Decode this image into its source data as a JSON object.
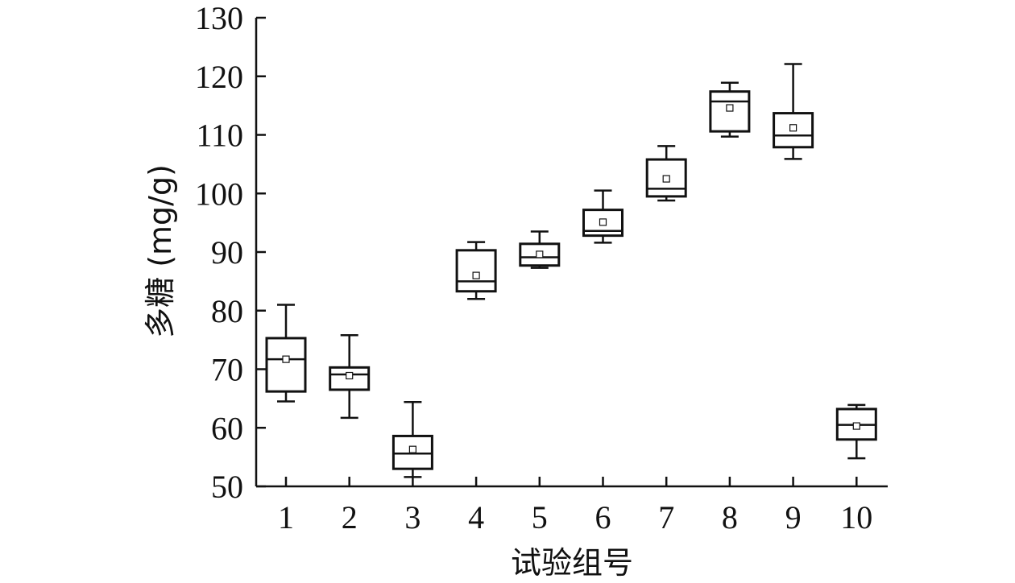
{
  "chart_data": {
    "type": "box",
    "title": "",
    "xlabel": "试验组号",
    "ylabel": "多糖 (mg/g)",
    "ylim": [
      50,
      130
    ],
    "yticks": [
      50,
      60,
      70,
      80,
      90,
      100,
      110,
      120,
      130
    ],
    "categories": [
      "1",
      "2",
      "3",
      "4",
      "5",
      "6",
      "7",
      "8",
      "9",
      "10"
    ],
    "boxes": [
      {
        "category": "1",
        "min": 64.5,
        "q1": 66.2,
        "median": 71.7,
        "q3": 75.3,
        "max": 81.0,
        "mean": 71.7
      },
      {
        "category": "2",
        "min": 61.7,
        "q1": 66.5,
        "median": 69.1,
        "q3": 70.3,
        "max": 75.8,
        "mean": 68.9
      },
      {
        "category": "3",
        "min": 51.6,
        "q1": 53.0,
        "median": 55.6,
        "q3": 58.6,
        "max": 64.4,
        "mean": 56.3
      },
      {
        "category": "4",
        "min": 82.0,
        "q1": 83.3,
        "median": 85.0,
        "q3": 90.3,
        "max": 91.7,
        "mean": 86.0
      },
      {
        "category": "5",
        "min": 87.3,
        "q1": 87.7,
        "median": 89.1,
        "q3": 91.4,
        "max": 93.5,
        "mean": 89.6
      },
      {
        "category": "6",
        "min": 91.6,
        "q1": 92.8,
        "median": 93.6,
        "q3": 97.2,
        "max": 100.5,
        "mean": 95.1
      },
      {
        "category": "7",
        "min": 98.8,
        "q1": 99.5,
        "median": 100.8,
        "q3": 105.8,
        "max": 108.1,
        "mean": 102.5
      },
      {
        "category": "8",
        "min": 109.7,
        "q1": 110.6,
        "median": 115.7,
        "q3": 117.4,
        "max": 118.9,
        "mean": 114.6
      },
      {
        "category": "9",
        "min": 105.9,
        "q1": 107.9,
        "median": 109.9,
        "q3": 113.7,
        "max": 122.1,
        "mean": 111.2
      },
      {
        "category": "10",
        "min": 54.8,
        "q1": 58.0,
        "median": 60.5,
        "q3": 63.2,
        "max": 63.9,
        "mean": 60.3
      }
    ],
    "grid": false,
    "legend": "none"
  }
}
